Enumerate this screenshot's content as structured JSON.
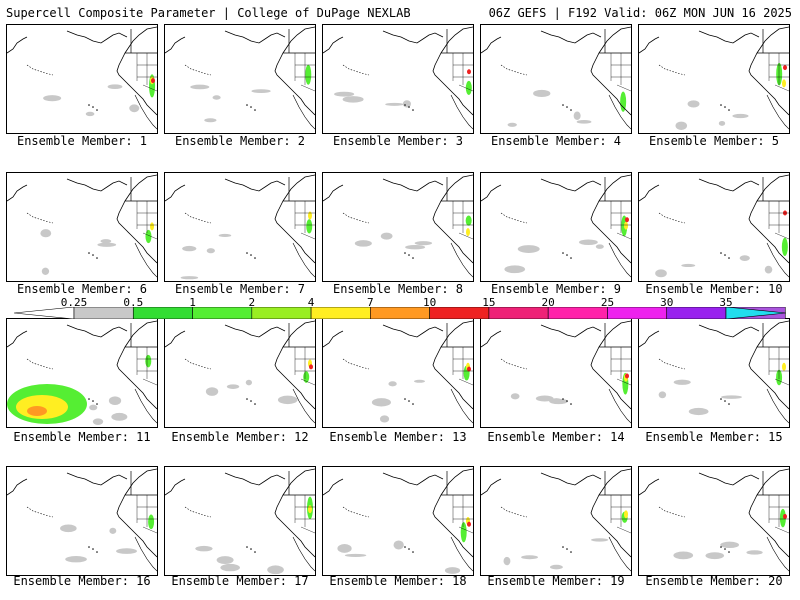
{
  "header": {
    "left": "Supercell Composite Parameter | College of DuPage NEXLAB",
    "right": "06Z GEFS | F192 Valid: 06Z MON JUN 16 2025"
  },
  "colorbar": {
    "labels": [
      "0.25",
      "0.5",
      "1",
      "2",
      "4",
      "7",
      "10",
      "15",
      "20",
      "25",
      "30",
      "35"
    ],
    "colors": [
      "#c8c8c8",
      "#33dd33",
      "#55ee33",
      "#99ee22",
      "#ffee22",
      "#ff9922",
      "#ee2222",
      "#ee2277",
      "#ff22aa",
      "#ee22ee",
      "#9922ee",
      "#aa55dd",
      "#22ddee"
    ]
  },
  "members": [
    {
      "label": "Ensemble Member: 1"
    },
    {
      "label": "Ensemble Member: 2"
    },
    {
      "label": "Ensemble Member: 3"
    },
    {
      "label": "Ensemble Member: 4"
    },
    {
      "label": "Ensemble Member: 5"
    },
    {
      "label": "Ensemble Member: 6"
    },
    {
      "label": "Ensemble Member: 7"
    },
    {
      "label": "Ensemble Member: 8"
    },
    {
      "label": "Ensemble Member: 9"
    },
    {
      "label": "Ensemble Member: 10"
    },
    {
      "label": "Ensemble Member: 11"
    },
    {
      "label": "Ensemble Member: 12"
    },
    {
      "label": "Ensemble Member: 13"
    },
    {
      "label": "Ensemble Member: 14"
    },
    {
      "label": "Ensemble Member: 15"
    },
    {
      "label": "Ensemble Member: 16"
    },
    {
      "label": "Ensemble Member: 17"
    },
    {
      "label": "Ensemble Member: 18"
    },
    {
      "label": "Ensemble Member: 19"
    },
    {
      "label": "Ensemble Member: 20"
    }
  ]
}
